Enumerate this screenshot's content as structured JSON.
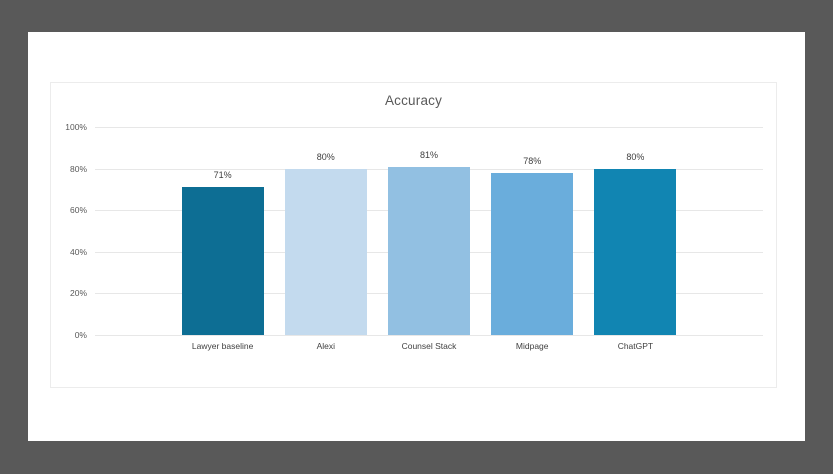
{
  "canvas": {
    "outer_background": "#595959",
    "page_background": "#FFFFFF",
    "frame_border_color": "#ECECEC"
  },
  "chart_data": {
    "type": "bar",
    "title": "Accuracy",
    "categories": [
      "Lawyer baseline",
      "Alexi",
      "Counsel Stack",
      "Midpage",
      "ChatGPT"
    ],
    "values": [
      71,
      80,
      81,
      78,
      80
    ],
    "value_labels": [
      "71%",
      "80%",
      "81%",
      "78%",
      "80%"
    ],
    "bar_colors": [
      "#0D6E94",
      "#C3DAEE",
      "#92C0E2",
      "#6AADDC",
      "#1185B2"
    ],
    "xlabel": "",
    "ylabel": "",
    "ylim": [
      0,
      100
    ],
    "y_tick_labels": [
      "100%",
      "80%",
      "60%",
      "40%",
      "20%",
      "0%"
    ],
    "y_tick_values": [
      100,
      80,
      60,
      40,
      20,
      0
    ],
    "grid": true,
    "legend": false,
    "gridline_color": "#E7E7E7",
    "title_color": "#595959",
    "tick_label_color": "#595959",
    "data_label_color": "#404040",
    "category_label_color": "#404040"
  }
}
